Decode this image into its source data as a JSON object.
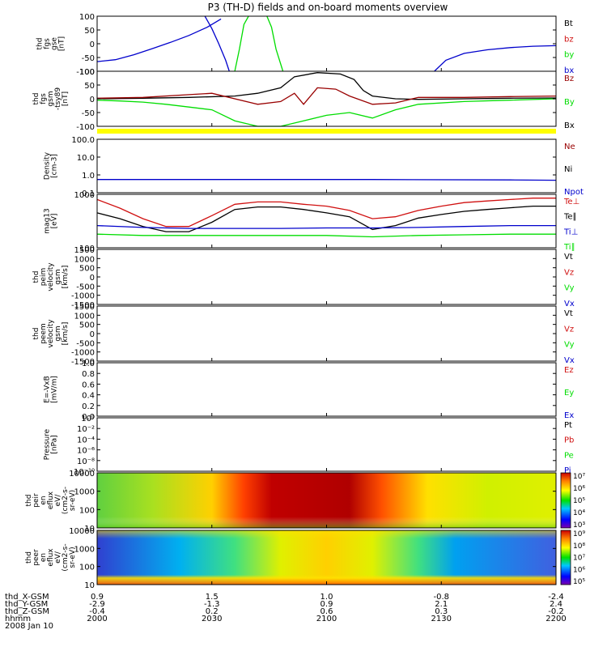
{
  "title": "P3 (TH-D) fields and on-board moments overview",
  "colors": {
    "black": "#000000",
    "red": "#d01010",
    "green": "#00dd00",
    "blue": "#0000cc",
    "darkred": "#990000",
    "yellow": "#ffff00"
  },
  "chart_data": {
    "type": "line",
    "x": {
      "tick_labels": [
        "2000",
        "2030",
        "2100",
        "2130",
        "2200"
      ],
      "unit": "hhmm",
      "date": "2008 Jan 10"
    },
    "panels": [
      {
        "id": "p1",
        "ylabel": [
          "thd",
          "fgs",
          "gse",
          "[nT]"
        ],
        "ylim": [
          -100,
          100
        ],
        "ticks": [
          "100",
          "50",
          "0",
          "-50",
          "-100"
        ],
        "legend": [
          {
            "name": "Bt",
            "color": "black"
          },
          {
            "name": "bz",
            "color": "red"
          },
          {
            "name": "by",
            "color": "green"
          },
          {
            "name": "bx",
            "color": "blue"
          }
        ],
        "series": [
          {
            "name": "bx",
            "color": "blue",
            "points": [
              [
                0,
                -65
              ],
              [
                0.04,
                -58
              ],
              [
                0.08,
                -40
              ],
              [
                0.12,
                -18
              ],
              [
                0.16,
                5
              ],
              [
                0.2,
                30
              ],
              [
                0.24,
                60
              ],
              [
                0.27,
                90
              ]
            ]
          },
          {
            "name": "bx",
            "color": "blue",
            "points": [
              [
                0.235,
                100
              ],
              [
                0.25,
                55
              ],
              [
                0.265,
                0
              ],
              [
                0.28,
                -60
              ],
              [
                0.288,
                -100
              ]
            ]
          },
          {
            "name": "by",
            "color": "green",
            "points": [
              [
                0.3,
                -100
              ],
              [
                0.31,
                -20
              ],
              [
                0.32,
                70
              ],
              [
                0.33,
                100
              ]
            ]
          },
          {
            "name": "by",
            "color": "green",
            "points": [
              [
                0.37,
                100
              ],
              [
                0.38,
                60
              ],
              [
                0.39,
                -20
              ],
              [
                0.405,
                -100
              ]
            ]
          },
          {
            "name": "bx",
            "color": "blue",
            "points": [
              [
                0.735,
                -100
              ],
              [
                0.76,
                -60
              ],
              [
                0.8,
                -35
              ],
              [
                0.85,
                -22
              ],
              [
                0.9,
                -14
              ],
              [
                0.95,
                -9
              ],
              [
                1.0,
                -7
              ]
            ]
          }
        ]
      },
      {
        "id": "p2",
        "ylabel": [
          "thd",
          "fgs",
          "gsm",
          "-tsy89",
          "[nT]"
        ],
        "ylim": [
          -100,
          100
        ],
        "ticks": [
          "100",
          "50",
          "0",
          "-50",
          "-100"
        ],
        "legend": [
          {
            "name": "Bz",
            "color": "darkred"
          },
          {
            "name": "By",
            "color": "green"
          },
          {
            "name": "Bx",
            "color": "black"
          }
        ],
        "series": [
          {
            "name": "Bx",
            "color": "black",
            "points": [
              [
                0,
                0
              ],
              [
                0.1,
                2
              ],
              [
                0.2,
                5
              ],
              [
                0.3,
                10
              ],
              [
                0.35,
                20
              ],
              [
                0.4,
                40
              ],
              [
                0.43,
                80
              ],
              [
                0.48,
                95
              ],
              [
                0.53,
                90
              ],
              [
                0.56,
                70
              ],
              [
                0.58,
                30
              ],
              [
                0.6,
                10
              ],
              [
                0.65,
                0
              ],
              [
                0.7,
                -2
              ],
              [
                0.8,
                0
              ],
              [
                0.9,
                2
              ],
              [
                1.0,
                3
              ]
            ]
          },
          {
            "name": "Bz",
            "color": "darkred",
            "points": [
              [
                0,
                2
              ],
              [
                0.1,
                5
              ],
              [
                0.2,
                15
              ],
              [
                0.25,
                20
              ],
              [
                0.35,
                -20
              ],
              [
                0.4,
                -10
              ],
              [
                0.43,
                20
              ],
              [
                0.45,
                -20
              ],
              [
                0.48,
                40
              ],
              [
                0.52,
                35
              ],
              [
                0.55,
                10
              ],
              [
                0.6,
                -20
              ],
              [
                0.65,
                -15
              ],
              [
                0.7,
                5
              ],
              [
                0.8,
                5
              ],
              [
                0.9,
                8
              ],
              [
                1.0,
                10
              ]
            ]
          },
          {
            "name": "By",
            "color": "green",
            "points": [
              [
                0,
                -5
              ],
              [
                0.05,
                -8
              ],
              [
                0.1,
                -12
              ],
              [
                0.15,
                -20
              ],
              [
                0.2,
                -30
              ],
              [
                0.25,
                -40
              ],
              [
                0.3,
                -80
              ],
              [
                0.35,
                -100
              ],
              [
                0.4,
                -100
              ],
              [
                0.45,
                -80
              ],
              [
                0.5,
                -60
              ],
              [
                0.55,
                -50
              ],
              [
                0.6,
                -70
              ],
              [
                0.65,
                -40
              ],
              [
                0.7,
                -20
              ],
              [
                0.8,
                -10
              ],
              [
                0.9,
                -5
              ],
              [
                1.0,
                0
              ]
            ]
          }
        ]
      },
      {
        "id": "p3",
        "ylabel": [
          "Density",
          "[cm-3]"
        ],
        "scale": "log",
        "ylim": [
          0.1,
          100
        ],
        "ticks": [
          "100.0",
          "10.0",
          "1.0",
          "0.1"
        ],
        "legend": [
          {
            "name": "Ne",
            "color": "darkred"
          },
          {
            "name": "Ni",
            "color": "black"
          },
          {
            "name": "Npot",
            "color": "blue"
          }
        ],
        "series": [
          {
            "name": "Npot",
            "color": "blue",
            "points": [
              [
                0,
                0.55
              ],
              [
                0.3,
                0.55
              ],
              [
                0.6,
                0.55
              ],
              [
                0.9,
                0.52
              ],
              [
                1.0,
                0.5
              ]
            ]
          }
        ]
      },
      {
        "id": "p4",
        "ylabel": [
          "mag13",
          "[eV]"
        ],
        "scale": "log",
        "ylim": [
          100,
          1000
        ],
        "ticks": [
          "1000",
          "100"
        ],
        "legend": [
          {
            "name": "Te⊥",
            "color": "red"
          },
          {
            "name": "Te∥",
            "color": "black"
          },
          {
            "name": "Ti⊥",
            "color": "blue"
          },
          {
            "name": "Ti∥",
            "color": "green"
          }
        ],
        "series": [
          {
            "name": "Te⊥",
            "color": "red",
            "points": [
              [
                0,
                800
              ],
              [
                0.05,
                550
              ],
              [
                0.1,
                350
              ],
              [
                0.15,
                250
              ],
              [
                0.2,
                250
              ],
              [
                0.25,
                400
              ],
              [
                0.3,
                650
              ],
              [
                0.35,
                720
              ],
              [
                0.4,
                720
              ],
              [
                0.45,
                650
              ],
              [
                0.5,
                600
              ],
              [
                0.55,
                500
              ],
              [
                0.6,
                350
              ],
              [
                0.65,
                380
              ],
              [
                0.7,
                500
              ],
              [
                0.75,
                600
              ],
              [
                0.8,
                700
              ],
              [
                0.85,
                750
              ],
              [
                0.9,
                800
              ],
              [
                0.95,
                850
              ],
              [
                1.0,
                850
              ]
            ]
          },
          {
            "name": "Te∥",
            "color": "black",
            "points": [
              [
                0,
                450
              ],
              [
                0.05,
                350
              ],
              [
                0.1,
                250
              ],
              [
                0.15,
                200
              ],
              [
                0.2,
                200
              ],
              [
                0.25,
                300
              ],
              [
                0.3,
                520
              ],
              [
                0.35,
                580
              ],
              [
                0.4,
                580
              ],
              [
                0.45,
                520
              ],
              [
                0.5,
                450
              ],
              [
                0.55,
                380
              ],
              [
                0.6,
                220
              ],
              [
                0.65,
                260
              ],
              [
                0.7,
                360
              ],
              [
                0.75,
                420
              ],
              [
                0.8,
                480
              ],
              [
                0.85,
                520
              ],
              [
                0.9,
                560
              ],
              [
                0.95,
                600
              ],
              [
                1.0,
                600
              ]
            ]
          },
          {
            "name": "Ti⊥",
            "color": "blue",
            "points": [
              [
                0,
                260
              ],
              [
                0.1,
                240
              ],
              [
                0.2,
                230
              ],
              [
                0.3,
                230
              ],
              [
                0.4,
                230
              ],
              [
                0.5,
                235
              ],
              [
                0.6,
                235
              ],
              [
                0.7,
                240
              ],
              [
                0.8,
                250
              ],
              [
                0.9,
                260
              ],
              [
                1.0,
                260
              ]
            ]
          },
          {
            "name": "Ti∥",
            "color": "green",
            "points": [
              [
                0,
                180
              ],
              [
                0.1,
                170
              ],
              [
                0.2,
                170
              ],
              [
                0.3,
                170
              ],
              [
                0.4,
                170
              ],
              [
                0.5,
                170
              ],
              [
                0.6,
                160
              ],
              [
                0.7,
                170
              ],
              [
                0.8,
                175
              ],
              [
                0.9,
                180
              ],
              [
                1.0,
                180
              ]
            ]
          }
        ]
      },
      {
        "id": "p5",
        "ylabel": [
          "thd",
          "peim",
          "velocity",
          "gsm",
          "[km/s]"
        ],
        "ylim": [
          -1500,
          1500
        ],
        "ticks": [
          "1500",
          "1000",
          "500",
          "0",
          "-500",
          "-1000",
          "-1500"
        ],
        "legend": [
          {
            "name": "Vt",
            "color": "black"
          },
          {
            "name": "Vz",
            "color": "red"
          },
          {
            "name": "Vy",
            "color": "green"
          },
          {
            "name": "Vx",
            "color": "blue"
          }
        ],
        "series": []
      },
      {
        "id": "p6",
        "ylabel": [
          "thd",
          "peem",
          "velocity",
          "gsm",
          "[km/s]"
        ],
        "ylim": [
          -1500,
          1500
        ],
        "ticks": [
          "1500",
          "1000",
          "500",
          "0",
          "-500",
          "-1000",
          "-1500"
        ],
        "legend": [
          {
            "name": "Vt",
            "color": "black"
          },
          {
            "name": "Vz",
            "color": "red"
          },
          {
            "name": "Vy",
            "color": "green"
          },
          {
            "name": "Vx",
            "color": "blue"
          }
        ],
        "series": []
      },
      {
        "id": "p7",
        "ylabel": [
          "E=-VxB",
          "[mV/m]"
        ],
        "ylim": [
          0,
          1
        ],
        "ticks": [
          "1.0",
          "0.8",
          "0.6",
          "0.4",
          "0.2",
          "0.0"
        ],
        "legend": [
          {
            "name": "Ez",
            "color": "red"
          },
          {
            "name": "Ey",
            "color": "green"
          },
          {
            "name": "Ex",
            "color": "blue"
          }
        ],
        "series": []
      },
      {
        "id": "p8",
        "ylabel": [
          "Pressure",
          "[nPa]"
        ],
        "scale": "log",
        "ticks": [
          "10⁰",
          "10⁻²",
          "10⁻⁴",
          "10⁻⁶",
          "10⁻⁸",
          "10⁻¹⁰"
        ],
        "legend": [
          {
            "name": "Pt",
            "color": "black"
          },
          {
            "name": "Pb",
            "color": "red"
          },
          {
            "name": "Pe",
            "color": "green"
          },
          {
            "name": "Pi",
            "color": "blue"
          }
        ],
        "series": []
      },
      {
        "id": "p9",
        "type": "heatmap",
        "ylabel": [
          "thd",
          "peir",
          "en",
          "eflux",
          "eV/",
          "(cm2-s-",
          "sr-eV)"
        ],
        "scale": "log",
        "ticks": [
          "10000",
          "1000",
          "100",
          "10"
        ],
        "colorbar": [
          "10⁷",
          "10⁶",
          "10⁵",
          "10⁴",
          "10³"
        ]
      },
      {
        "id": "p10",
        "type": "heatmap",
        "ylabel": [
          "thd",
          "peer",
          "en",
          "eflux",
          "eV/",
          "(cm2-s-",
          "sr-eV)"
        ],
        "scale": "log",
        "ticks": [
          "10000",
          "1000",
          "100",
          "10"
        ],
        "colorbar": [
          "10⁹",
          "10⁸",
          "10⁷",
          "10⁶",
          "10⁵"
        ]
      }
    ],
    "ephemeris": {
      "labels": [
        "thd_X-GSM",
        "thd_Y-GSM",
        "thd_Z-GSM",
        "hhmm",
        "2008 Jan 10"
      ],
      "rows": [
        [
          "0.9",
          "1.5",
          "1.0",
          "-0.8",
          "-2.4"
        ],
        [
          "-2.9",
          "-1.3",
          "0.9",
          "2.1",
          "2.4"
        ],
        [
          "-0.4",
          "0.2",
          "0.6",
          "0.3",
          "-0.2"
        ],
        [
          "2000",
          "2030",
          "2100",
          "2130",
          "2200"
        ]
      ]
    }
  }
}
